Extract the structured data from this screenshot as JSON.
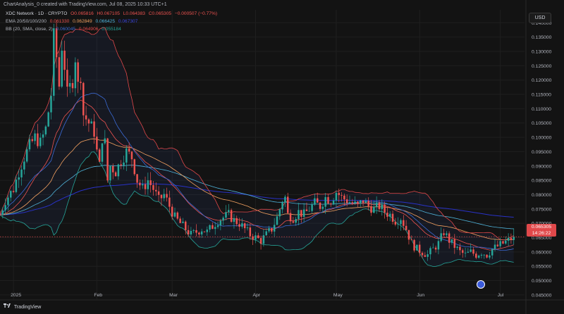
{
  "header": {
    "created_text": "ChartAnalysis_0 created with TradingView.com, Jul 08, 2025 10:33 UTC+1",
    "symbol_line": "XDC Network · 1D · CRYPTO",
    "ohlc": {
      "o": "O0.065816",
      "h": "H0.067105",
      "l": "L0.064383",
      "c": "C0.065305",
      "chg": "−0.000507 (−0.77%)"
    },
    "ema": {
      "label": "EMA 20/50/100/200",
      "v1": "0.061330",
      "v2": "0.062849",
      "v3": "0.066425",
      "v4": "0.067307"
    },
    "bb": {
      "label": "BB (20, SMA, close, 2)",
      "v1": "0.060045",
      "v2": "0.064906",
      "v3": "0.055184"
    }
  },
  "currency_button": "USD",
  "price_tag": {
    "price": "0.065305",
    "countdown": "14:26:22"
  },
  "footer": {
    "brand": "TradingView"
  },
  "colors": {
    "up": "#26a69a",
    "down": "#ef5350",
    "ema20": "#ef5350",
    "ema50": "#f4a261",
    "ema100": "#4fb3d9",
    "ema200": "#2932c8",
    "bb_band": "#3b6bd6",
    "bb_upper": "#e0484a",
    "bb_lower": "#26a69a",
    "bg": "#131313"
  },
  "chart_data": {
    "type": "candlestick",
    "y_ticks": [
      "0.140000",
      "0.135000",
      "0.130000",
      "0.125000",
      "0.120000",
      "0.115000",
      "0.110000",
      "0.105000",
      "0.100000",
      "0.095000",
      "0.090000",
      "0.085000",
      "0.080000",
      "0.075000",
      "0.070000",
      "0.065000",
      "0.060000",
      "0.055000",
      "0.050000",
      "0.045000"
    ],
    "ylim": [
      0.0435,
      0.1445
    ],
    "x_ticks": [
      {
        "label": "2025",
        "day": 0
      },
      {
        "label": "Feb",
        "day": 31
      },
      {
        "label": "Mar",
        "day": 59
      },
      {
        "label": "Apr",
        "day": 90
      },
      {
        "label": "May",
        "day": 120
      },
      {
        "label": "Jun",
        "day": 151
      },
      {
        "label": "Jul",
        "day": 181
      }
    ],
    "x_range_days": [
      -5,
      190
    ],
    "last_price": 0.065305,
    "close_anchors": [
      [
        -5,
        0.073
      ],
      [
        -3,
        0.078
      ],
      [
        0,
        0.082
      ],
      [
        2,
        0.088
      ],
      [
        4,
        0.093
      ],
      [
        6,
        0.097
      ],
      [
        8,
        0.1
      ],
      [
        10,
        0.098
      ],
      [
        12,
        0.103
      ],
      [
        14,
        0.115
      ],
      [
        15,
        0.135
      ],
      [
        16,
        0.128
      ],
      [
        17,
        0.118
      ],
      [
        18,
        0.132
      ],
      [
        19,
        0.125
      ],
      [
        20,
        0.115
      ],
      [
        22,
        0.12
      ],
      [
        23,
        0.128
      ],
      [
        24,
        0.118
      ],
      [
        25,
        0.122
      ],
      [
        26,
        0.108
      ],
      [
        28,
        0.105
      ],
      [
        30,
        0.102
      ],
      [
        31,
        0.095
      ],
      [
        32,
        0.09
      ],
      [
        33,
        0.1
      ],
      [
        34,
        0.098
      ],
      [
        35,
        0.085
      ],
      [
        36,
        0.09
      ],
      [
        38,
        0.088
      ],
      [
        40,
        0.092
      ],
      [
        42,
        0.095
      ],
      [
        44,
        0.093
      ],
      [
        46,
        0.085
      ],
      [
        48,
        0.082
      ],
      [
        50,
        0.085
      ],
      [
        52,
        0.082
      ],
      [
        54,
        0.078
      ],
      [
        56,
        0.08
      ],
      [
        58,
        0.076
      ],
      [
        60,
        0.072
      ],
      [
        62,
        0.07
      ],
      [
        64,
        0.068
      ],
      [
        66,
        0.066
      ],
      [
        68,
        0.067
      ],
      [
        70,
        0.068
      ],
      [
        72,
        0.067
      ],
      [
        74,
        0.069
      ],
      [
        76,
        0.071
      ],
      [
        78,
        0.072
      ],
      [
        80,
        0.073
      ],
      [
        82,
        0.071
      ],
      [
        84,
        0.07
      ],
      [
        86,
        0.068
      ],
      [
        88,
        0.066
      ],
      [
        90,
        0.065
      ],
      [
        92,
        0.064
      ],
      [
        94,
        0.066
      ],
      [
        96,
        0.068
      ],
      [
        98,
        0.072
      ],
      [
        100,
        0.078
      ],
      [
        101,
        0.079
      ],
      [
        102,
        0.073
      ],
      [
        104,
        0.072
      ],
      [
        106,
        0.074
      ],
      [
        108,
        0.073
      ],
      [
        110,
        0.075
      ],
      [
        112,
        0.077
      ],
      [
        114,
        0.076
      ],
      [
        116,
        0.079
      ],
      [
        118,
        0.078
      ],
      [
        120,
        0.081
      ],
      [
        122,
        0.079
      ],
      [
        124,
        0.078
      ],
      [
        126,
        0.077
      ],
      [
        128,
        0.076
      ],
      [
        130,
        0.078
      ],
      [
        132,
        0.076
      ],
      [
        134,
        0.075
      ],
      [
        136,
        0.076
      ],
      [
        138,
        0.074
      ],
      [
        140,
        0.073
      ],
      [
        142,
        0.071
      ],
      [
        144,
        0.072
      ],
      [
        146,
        0.068
      ],
      [
        148,
        0.063
      ],
      [
        150,
        0.061
      ],
      [
        152,
        0.06
      ],
      [
        154,
        0.059
      ],
      [
        156,
        0.061
      ],
      [
        158,
        0.063
      ],
      [
        160,
        0.067
      ],
      [
        162,
        0.064
      ],
      [
        164,
        0.062
      ],
      [
        166,
        0.06
      ],
      [
        168,
        0.059
      ],
      [
        170,
        0.06
      ],
      [
        172,
        0.059
      ],
      [
        174,
        0.06
      ],
      [
        176,
        0.059
      ],
      [
        178,
        0.061
      ],
      [
        180,
        0.062
      ],
      [
        182,
        0.063
      ],
      [
        184,
        0.064
      ],
      [
        186,
        0.0653
      ]
    ],
    "last_day": 186
  }
}
